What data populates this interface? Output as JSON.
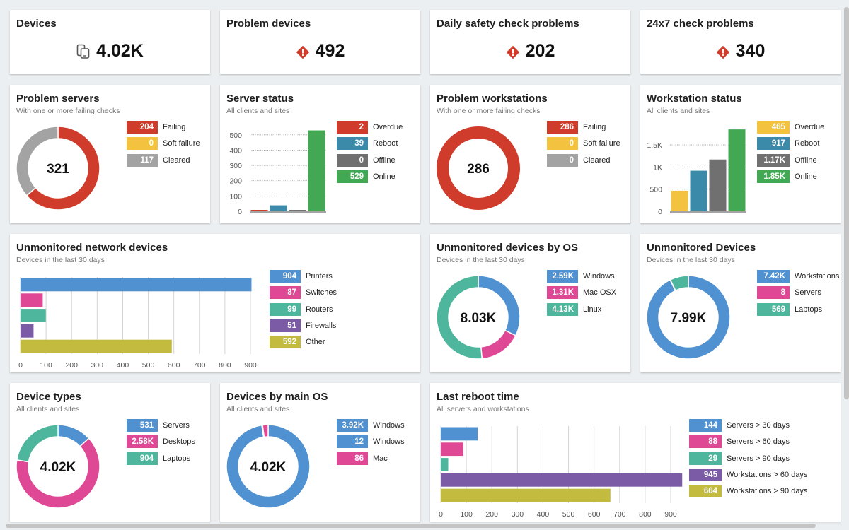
{
  "colors": {
    "red": "#d03c2c",
    "yellow": "#f3c33f",
    "grey": "#a3a3a3",
    "darkgrey": "#707070",
    "teal": "#3c8aa9",
    "green": "#43a853",
    "blue": "#4f91d1",
    "pink": "#df4895",
    "seafoam": "#4db69c",
    "purple": "#7c5ba6",
    "olive": "#c2bb3f"
  },
  "kpis": [
    {
      "title": "Devices",
      "value": "4.02K",
      "icon": "devices-icon"
    },
    {
      "title": "Problem devices",
      "value": "492",
      "icon": "warning-icon"
    },
    {
      "title": "Daily safety check problems",
      "value": "202",
      "icon": "warning-icon"
    },
    {
      "title": "24x7 check problems",
      "value": "340",
      "icon": "warning-icon"
    }
  ],
  "problem_servers": {
    "title": "Problem servers",
    "subtitle": "With one or more failing checks",
    "center": "321",
    "legend": [
      {
        "value": "204",
        "label": "Failing",
        "color": "#d03c2c"
      },
      {
        "value": "0",
        "label": "Soft failure",
        "color": "#f3c33f"
      },
      {
        "value": "117",
        "label": "Cleared",
        "color": "#a3a3a3"
      }
    ],
    "chart_data": {
      "type": "pie",
      "labels": [
        "Failing",
        "Soft failure",
        "Cleared"
      ],
      "values": [
        204,
        0,
        117
      ],
      "center_label": "321"
    }
  },
  "server_status": {
    "title": "Server status",
    "subtitle": "All clients and sites",
    "legend": [
      {
        "value": "2",
        "label": "Overdue",
        "color": "#d03c2c"
      },
      {
        "value": "39",
        "label": "Reboot",
        "color": "#3c8aa9"
      },
      {
        "value": "0",
        "label": "Offline",
        "color": "#707070"
      },
      {
        "value": "529",
        "label": "Online",
        "color": "#43a853"
      }
    ],
    "chart_data": {
      "type": "bar",
      "categories": [
        "Overdue",
        "Reboot",
        "Offline",
        "Online"
      ],
      "values": [
        2,
        39,
        0,
        529
      ],
      "ylim": [
        0,
        550
      ],
      "yticks": [
        "0",
        "100",
        "200",
        "300",
        "400",
        "500"
      ]
    }
  },
  "problem_workstations": {
    "title": "Problem workstations",
    "subtitle": "With one or more failing checks",
    "center": "286",
    "legend": [
      {
        "value": "286",
        "label": "Failing",
        "color": "#d03c2c"
      },
      {
        "value": "0",
        "label": "Soft failure",
        "color": "#f3c33f"
      },
      {
        "value": "0",
        "label": "Cleared",
        "color": "#a3a3a3"
      }
    ],
    "chart_data": {
      "type": "pie",
      "labels": [
        "Failing",
        "Soft failure",
        "Cleared"
      ],
      "values": [
        286,
        0,
        0
      ],
      "center_label": "286"
    }
  },
  "workstation_status": {
    "title": "Workstation status",
    "subtitle": "All clients and sites",
    "legend": [
      {
        "value": "465",
        "label": "Overdue",
        "color": "#f3c33f"
      },
      {
        "value": "917",
        "label": "Reboot",
        "color": "#3c8aa9"
      },
      {
        "value": "1.17K",
        "label": "Offline",
        "color": "#707070"
      },
      {
        "value": "1.85K",
        "label": "Online",
        "color": "#43a853"
      }
    ],
    "chart_data": {
      "type": "bar",
      "categories": [
        "Overdue",
        "Reboot",
        "Offline",
        "Online"
      ],
      "values": [
        465,
        917,
        1170,
        1850
      ],
      "ylim": [
        0,
        1900
      ],
      "yticks": [
        "0",
        "500",
        "1K",
        "1.5K"
      ]
    }
  },
  "unmonitored_network": {
    "title": "Unmonitored network devices",
    "subtitle": "Devices in the last 30 days",
    "legend": [
      {
        "value": "904",
        "label": "Printers",
        "color": "#4f91d1"
      },
      {
        "value": "87",
        "label": "Switches",
        "color": "#df4895"
      },
      {
        "value": "99",
        "label": "Routers",
        "color": "#4db69c"
      },
      {
        "value": "51",
        "label": "Firewalls",
        "color": "#7c5ba6"
      },
      {
        "value": "592",
        "label": "Other",
        "color": "#c2bb3f"
      }
    ],
    "chart_data": {
      "type": "bar",
      "orientation": "horizontal",
      "categories": [
        "Printers",
        "Switches",
        "Routers",
        "Firewalls",
        "Other"
      ],
      "values": [
        904,
        87,
        99,
        51,
        592
      ],
      "xlim": [
        0,
        900
      ],
      "xticks": [
        "0",
        "100",
        "200",
        "300",
        "400",
        "500",
        "600",
        "700",
        "800",
        "900"
      ]
    }
  },
  "unmonitored_os": {
    "title": "Unmonitored devices by OS",
    "subtitle": "Devices in the last 30 days",
    "center": "8.03K",
    "legend": [
      {
        "value": "2.59K",
        "label": "Windows",
        "color": "#4f91d1"
      },
      {
        "value": "1.31K",
        "label": "Mac OSX",
        "color": "#df4895"
      },
      {
        "value": "4.13K",
        "label": "Linux",
        "color": "#4db69c"
      }
    ],
    "chart_data": {
      "type": "pie",
      "labels": [
        "Windows",
        "Mac OSX",
        "Linux"
      ],
      "values": [
        2590,
        1310,
        4130
      ],
      "center_label": "8.03K"
    }
  },
  "unmonitored_devices": {
    "title": "Unmonitored Devices",
    "subtitle": "Devices in the last 30 days",
    "center": "7.99K",
    "legend": [
      {
        "value": "7.42K",
        "label": "Workstations",
        "color": "#4f91d1"
      },
      {
        "value": "8",
        "label": "Servers",
        "color": "#df4895"
      },
      {
        "value": "569",
        "label": "Laptops",
        "color": "#4db69c"
      }
    ],
    "chart_data": {
      "type": "pie",
      "labels": [
        "Workstations",
        "Servers",
        "Laptops"
      ],
      "values": [
        7420,
        8,
        569
      ],
      "center_label": "7.99K"
    }
  },
  "device_types": {
    "title": "Device types",
    "subtitle": "All clients and sites",
    "center": "4.02K",
    "legend": [
      {
        "value": "531",
        "label": "Servers",
        "color": "#4f91d1"
      },
      {
        "value": "2.58K",
        "label": "Desktops",
        "color": "#df4895"
      },
      {
        "value": "904",
        "label": "Laptops",
        "color": "#4db69c"
      }
    ],
    "chart_data": {
      "type": "pie",
      "labels": [
        "Servers",
        "Desktops",
        "Laptops"
      ],
      "values": [
        531,
        2580,
        904
      ],
      "center_label": "4.02K"
    }
  },
  "devices_main_os": {
    "title": "Devices by main OS",
    "subtitle": "All clients and sites",
    "center": "4.02K",
    "legend": [
      {
        "value": "3.92K",
        "label": "Windows",
        "color": "#4f91d1"
      },
      {
        "value": "12",
        "label": "Windows",
        "color": "#4f91d1"
      },
      {
        "value": "86",
        "label": "Mac",
        "color": "#df4895"
      }
    ],
    "chart_data": {
      "type": "pie",
      "labels": [
        "Windows",
        "Windows",
        "Mac"
      ],
      "values": [
        3920,
        12,
        86
      ],
      "center_label": "4.02K"
    }
  },
  "last_reboot": {
    "title": "Last reboot time",
    "subtitle": "All servers and workstations",
    "legend": [
      {
        "value": "144",
        "label": "Servers > 30 days",
        "color": "#4f91d1"
      },
      {
        "value": "88",
        "label": "Servers > 60 days",
        "color": "#df4895"
      },
      {
        "value": "29",
        "label": "Servers > 90 days",
        "color": "#4db69c"
      },
      {
        "value": "945",
        "label": "Workstations > 60 days",
        "color": "#7c5ba6"
      },
      {
        "value": "664",
        "label": "Workstations > 90 days",
        "color": "#c2bb3f"
      }
    ],
    "chart_data": {
      "type": "bar",
      "orientation": "horizontal",
      "categories": [
        "Servers > 30 days",
        "Servers > 60 days",
        "Servers > 90 days",
        "Workstations > 60 days",
        "Workstations > 90 days"
      ],
      "values": [
        144,
        88,
        29,
        945,
        664
      ],
      "xlim": [
        0,
        900
      ],
      "xticks": [
        "0",
        "100",
        "200",
        "300",
        "400",
        "500",
        "600",
        "700",
        "800",
        "900"
      ]
    }
  }
}
